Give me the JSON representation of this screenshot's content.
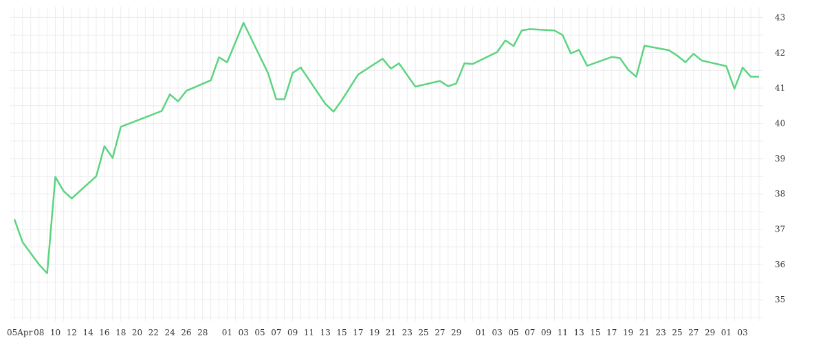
{
  "chart_data": {
    "type": "line",
    "title": "",
    "xlabel": "",
    "ylabel": "",
    "ylim": [
      34.4,
      43.3
    ],
    "y_ticks": [
      "35",
      "36",
      "37",
      "38",
      "39",
      "40",
      "41",
      "42",
      "43"
    ],
    "x_ticks": [
      "05Apr",
      "08",
      "10",
      "12",
      "14",
      "16",
      "18",
      "20",
      "22",
      "24",
      "26",
      "28",
      "01",
      "03",
      "05",
      "07",
      "09",
      "11",
      "13",
      "15",
      "17",
      "19",
      "21",
      "23",
      "25",
      "27",
      "29",
      "01",
      "03",
      "05",
      "07",
      "09",
      "11",
      "13",
      "15",
      "17",
      "19",
      "21",
      "23",
      "25",
      "27",
      "29",
      "01",
      "03"
    ],
    "grid": true,
    "legend": "none",
    "y_axis_side": "right",
    "colors": {
      "line": "#5ad47f",
      "grid": "#ececec",
      "tick_text": "#333333"
    },
    "series": [
      {
        "x": [
          "2024-04-05",
          "2024-04-06",
          "2024-04-08",
          "2024-04-09",
          "2024-04-10",
          "2024-04-11",
          "2024-04-12",
          "2024-04-15",
          "2024-04-16",
          "2024-04-17",
          "2024-04-18",
          "2024-04-23",
          "2024-04-24",
          "2024-04-25",
          "2024-04-26",
          "2024-04-29",
          "2024-04-30",
          "2024-05-01",
          "2024-05-03",
          "2024-05-06",
          "2024-05-07",
          "2024-05-08",
          "2024-05-09",
          "2024-05-10",
          "2024-05-13",
          "2024-05-14",
          "2024-05-15",
          "2024-05-17",
          "2024-05-20",
          "2024-05-21",
          "2024-05-22",
          "2024-05-24",
          "2024-05-27",
          "2024-05-28",
          "2024-05-29",
          "2024-05-30",
          "2024-05-31",
          "2024-06-03",
          "2024-06-04",
          "2024-06-05",
          "2024-06-06",
          "2024-06-07",
          "2024-06-10",
          "2024-06-11",
          "2024-06-12",
          "2024-06-13",
          "2024-06-14",
          "2024-06-17",
          "2024-06-18",
          "2024-06-19",
          "2024-06-20",
          "2024-06-21",
          "2024-06-24",
          "2024-06-25",
          "2024-06-26",
          "2024-06-27",
          "2024-06-28",
          "2024-07-01",
          "2024-07-02",
          "2024-07-03",
          "2024-07-04",
          "2024-07-05"
        ],
        "values": [
          37.28,
          36.63,
          36.0,
          35.75,
          38.48,
          38.08,
          37.87,
          38.5,
          39.35,
          39.02,
          39.9,
          40.35,
          40.82,
          40.62,
          40.92,
          41.22,
          41.87,
          41.73,
          42.85,
          41.42,
          40.68,
          40.68,
          41.43,
          41.58,
          40.55,
          40.33,
          40.65,
          41.38,
          41.83,
          41.55,
          41.7,
          41.04,
          41.2,
          41.05,
          41.13,
          41.7,
          41.68,
          42.02,
          42.35,
          42.19,
          42.63,
          42.67,
          42.63,
          42.5,
          41.98,
          42.08,
          41.63,
          41.88,
          41.85,
          41.52,
          41.32,
          42.2,
          42.07,
          41.92,
          41.73,
          41.97,
          41.78,
          41.62,
          40.98,
          41.58,
          41.32,
          41.32
        ]
      }
    ]
  }
}
